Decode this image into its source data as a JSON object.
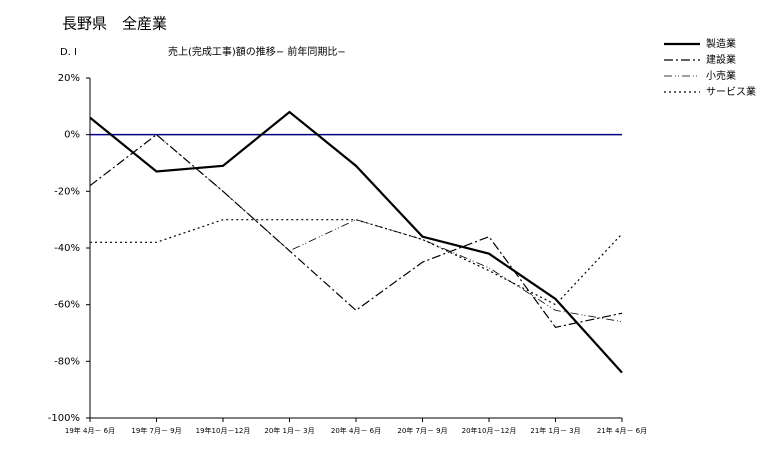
{
  "chart_data": {
    "type": "line",
    "title": "長野県　全産業",
    "y_label": "D. I",
    "subtitle": "売上(完成工事)額の推移− 前年同期比−",
    "categories": [
      "19年 4月－ 6月",
      "19年 7月－ 9月",
      "19年10月－12月",
      "20年 1月－ 3月",
      "20年 4月－ 6月",
      "20年 7月－ 9月",
      "20年10月－12月",
      "21年 1月－ 3月",
      "21年 4月－ 6月"
    ],
    "series": [
      {
        "name": "製造業",
        "color": "#000000",
        "width": 2.2,
        "dash": "none",
        "values": [
          6,
          -13,
          -11,
          8,
          -11,
          -36,
          -42,
          -58,
          -84
        ]
      },
      {
        "name": "建設業",
        "color": "#000000",
        "width": 1.2,
        "dash": "9 3 2 3",
        "values": [
          -18,
          0,
          -20,
          -41,
          -62,
          -45,
          -36,
          -68,
          -63
        ]
      },
      {
        "name": "小売業",
        "color": "#000000",
        "width": 0.8,
        "dash": "8 3 1 2 1 3",
        "values": [
          null,
          0,
          -20,
          -41,
          -30,
          -37,
          -47,
          -62,
          -66
        ]
      },
      {
        "name": "サービス業",
        "color": "#000000",
        "width": 1.2,
        "dash": "2 3",
        "values": [
          -38,
          -38,
          -30,
          -30,
          -30,
          -37,
          -48,
          -60,
          -35
        ]
      }
    ],
    "ylim": [
      -100,
      20
    ],
    "yticks": [
      {
        "value": 20,
        "label": "20%"
      },
      {
        "value": 0,
        "label": "0%"
      },
      {
        "value": -20,
        "label": "-20%"
      },
      {
        "value": -40,
        "label": "-40%"
      },
      {
        "value": -60,
        "label": "-60%"
      },
      {
        "value": -80,
        "label": "-80%"
      },
      {
        "value": -100,
        "label": "-100%"
      }
    ],
    "zero_line_color": "#000080",
    "legend": "top-right"
  }
}
